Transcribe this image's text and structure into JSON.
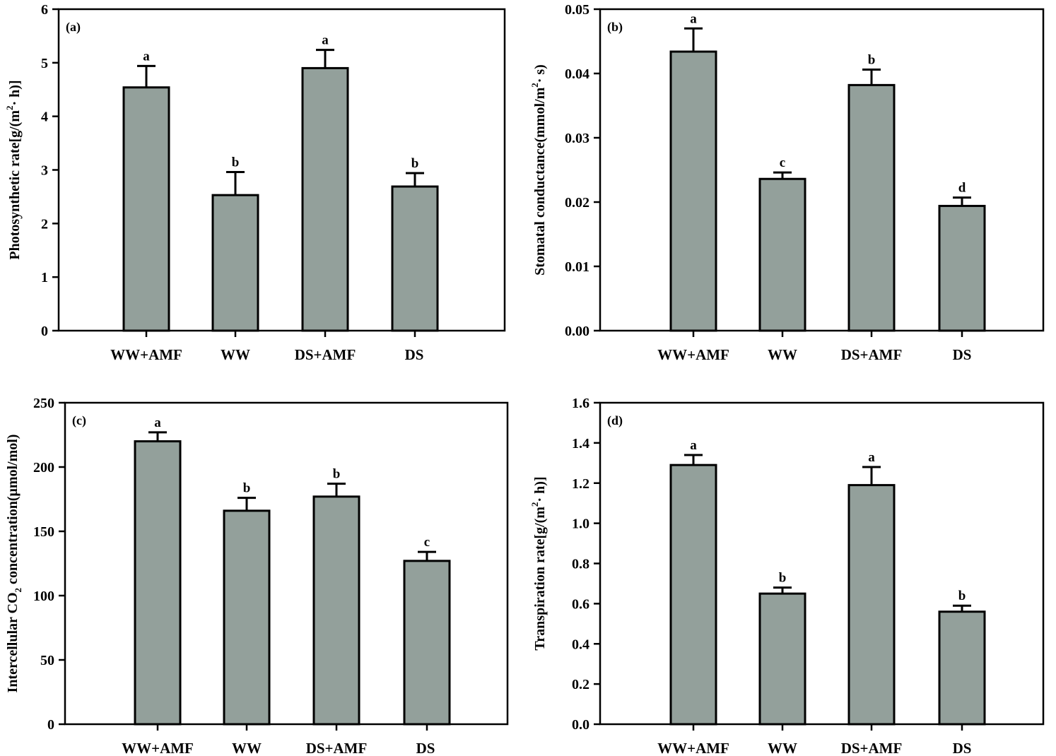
{
  "colors": {
    "bar_fill": "#93a09b",
    "outline": "#000000",
    "background": "#ffffff"
  },
  "chart_data": [
    {
      "type": "bar",
      "panel_label": "(a)",
      "ylabel_parts": [
        "Photosynthetic rate[g/(m",
        "2",
        "· h)]"
      ],
      "categories": [
        "WW+AMF",
        "WW",
        "DS+AMF",
        "DS"
      ],
      "values": [
        4.54,
        2.53,
        4.9,
        2.69
      ],
      "errors": [
        0.4,
        0.43,
        0.34,
        0.25
      ],
      "significance": [
        "a",
        "b",
        "a",
        "b"
      ],
      "ylim": [
        0,
        6
      ],
      "yticks": [
        0,
        1,
        2,
        3,
        4,
        5,
        6
      ],
      "ytick_labels": [
        "0",
        "1",
        "2",
        "3",
        "4",
        "5",
        "6"
      ],
      "grid": false,
      "legend": "none"
    },
    {
      "type": "bar",
      "panel_label": "(b)",
      "ylabel_parts": [
        "Stomatal conductance(mmol/m",
        "2",
        "· s)"
      ],
      "categories": [
        "WW+AMF",
        "WW",
        "DS+AMF",
        "DS"
      ],
      "values": [
        0.0434,
        0.0236,
        0.0382,
        0.0194
      ],
      "errors": [
        0.0036,
        0.001,
        0.0024,
        0.0013
      ],
      "significance": [
        "a",
        "c",
        "b",
        "d"
      ],
      "ylim": [
        0,
        0.05
      ],
      "yticks": [
        0,
        0.01,
        0.02,
        0.03,
        0.04,
        0.05
      ],
      "ytick_labels": [
        "0.00",
        "0.01",
        "0.02",
        "0.03",
        "0.04",
        "0.05"
      ],
      "grid": false,
      "legend": "none"
    },
    {
      "type": "bar",
      "panel_label": "(c)",
      "ylabel_parts": [
        "Intercellular CO",
        "2",
        " concentration(μmol/mol)"
      ],
      "categories": [
        "WW+AMF",
        "WW",
        "DS+AMF",
        "DS"
      ],
      "values": [
        220,
        166,
        177,
        127
      ],
      "errors": [
        7,
        10,
        10,
        7
      ],
      "significance": [
        "a",
        "b",
        "b",
        "c"
      ],
      "ylim": [
        0,
        250
      ],
      "yticks": [
        0,
        50,
        100,
        150,
        200,
        250
      ],
      "ytick_labels": [
        "0",
        "50",
        "100",
        "150",
        "200",
        "250"
      ],
      "grid": false,
      "legend": "none"
    },
    {
      "type": "bar",
      "panel_label": "(d)",
      "ylabel_parts": [
        "Transpiration rate[g/(m",
        "2",
        "· h)]"
      ],
      "categories": [
        "WW+AMF",
        "WW",
        "DS+AMF",
        "DS"
      ],
      "values": [
        1.29,
        0.65,
        1.19,
        0.56
      ],
      "errors": [
        0.05,
        0.03,
        0.09,
        0.03
      ],
      "significance": [
        "a",
        "b",
        "a",
        "b"
      ],
      "ylim": [
        0,
        1.6
      ],
      "yticks": [
        0,
        0.2,
        0.4,
        0.6,
        0.8,
        1.0,
        1.2,
        1.4,
        1.6
      ],
      "ytick_labels": [
        "0.0",
        "0.2",
        "0.4",
        "0.6",
        "0.8",
        "1.0",
        "1.2",
        "1.4",
        "1.6"
      ],
      "grid": false,
      "legend": "none"
    }
  ]
}
